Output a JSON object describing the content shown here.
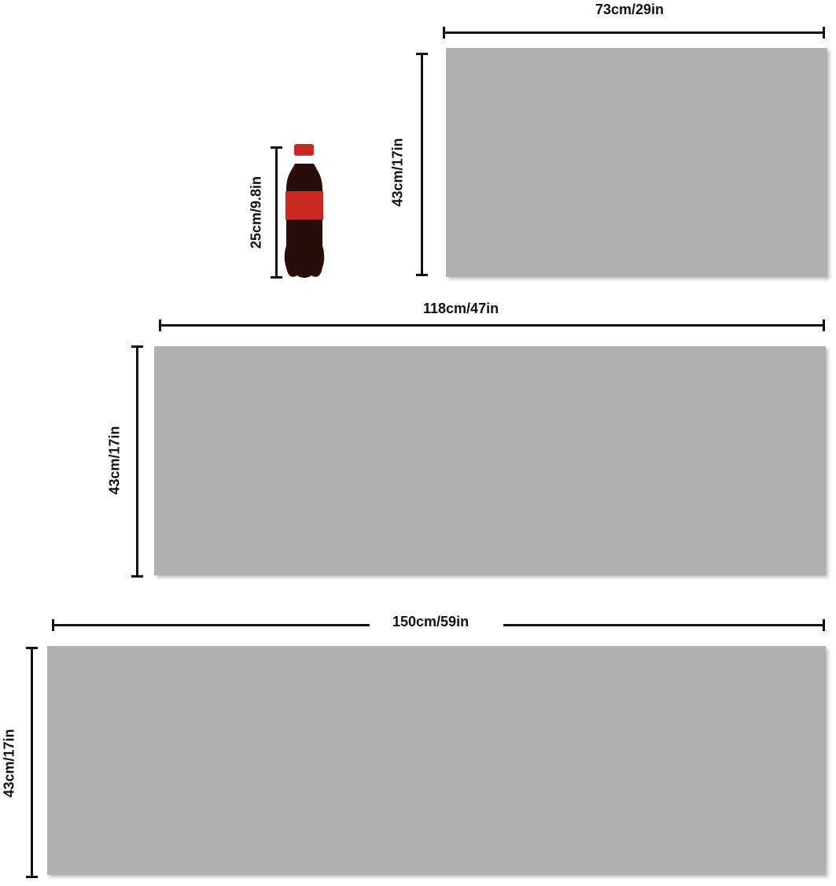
{
  "panels": [
    {
      "width_label": "73cm/29in",
      "height_label": "43cm/17in"
    },
    {
      "width_label": "118cm/47in",
      "height_label": "43cm/17in"
    },
    {
      "width_label": "150cm/59in",
      "height_label": "43cm/17in"
    }
  ],
  "reference": {
    "object": "soda-bottle",
    "height_label": "25cm/9.8in"
  },
  "colors": {
    "panel": "#b0afb0",
    "bottle_body": "#2a0e0c",
    "bottle_label": "#c8281f",
    "dimension_line": "#111111"
  }
}
